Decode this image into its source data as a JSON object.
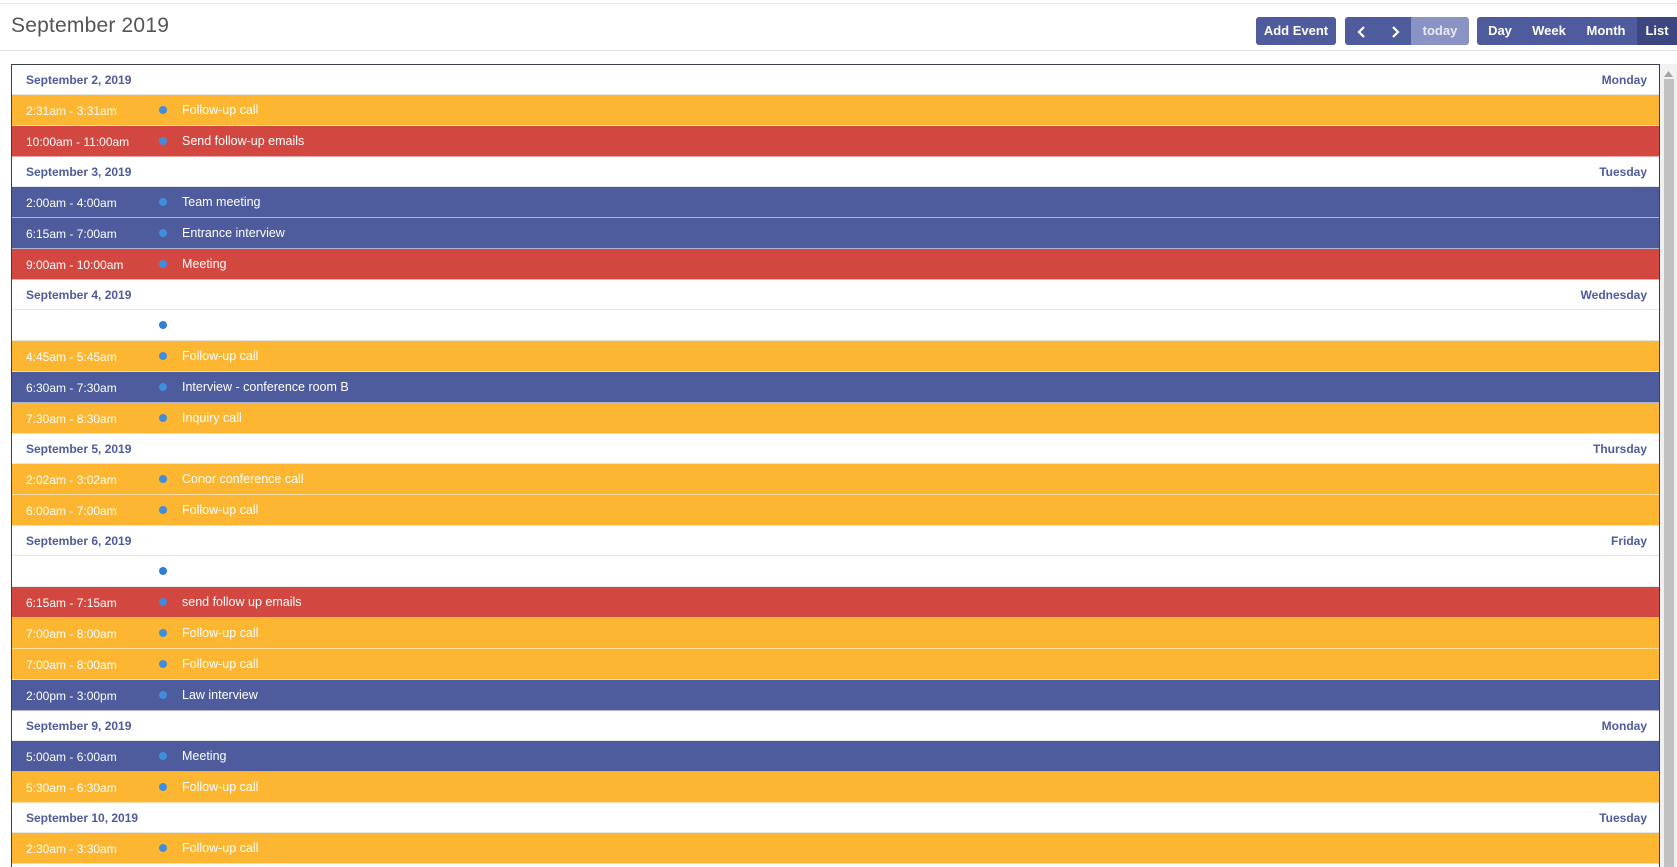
{
  "header": {
    "title": "September 2019",
    "add_event_label": "Add Event",
    "prev_icon": "chevron-left-icon",
    "next_icon": "chevron-right-icon",
    "today_label": "today",
    "views": {
      "day": "Day",
      "week": "Week",
      "month": "Month",
      "list": "List"
    },
    "active_view": "List"
  },
  "colors": {
    "accent": "#4e5b9c",
    "orange": "#fdb631",
    "red": "#d24841",
    "blue": "#4e5b9c",
    "dot": "#3f8ede"
  },
  "days": [
    {
      "date": "September 2, 2019",
      "weekday": "Monday",
      "events": [
        {
          "time": "2:31am - 3:31am",
          "title": "Follow-up call",
          "color": "orange"
        },
        {
          "time": "10:00am - 11:00am",
          "title": "Send follow-up emails",
          "color": "red"
        }
      ]
    },
    {
      "date": "September 3, 2019",
      "weekday": "Tuesday",
      "events": [
        {
          "time": "2:00am - 4:00am",
          "title": "Team meeting",
          "color": "blue"
        },
        {
          "time": "6:15am - 7:00am",
          "title": "Entrance interview",
          "color": "blue"
        },
        {
          "time": "9:00am - 10:00am",
          "title": "Meeting",
          "color": "red"
        }
      ]
    },
    {
      "date": "September 4, 2019",
      "weekday": "Wednesday",
      "events": [
        {
          "time": "",
          "title": "",
          "color": "white"
        },
        {
          "time": "4:45am - 5:45am",
          "title": "Follow-up call",
          "color": "orange"
        },
        {
          "time": "6:30am - 7:30am",
          "title": "Interview - conference room B",
          "color": "blue"
        },
        {
          "time": "7:30am - 8:30am",
          "title": "Inquiry call",
          "color": "orange"
        }
      ]
    },
    {
      "date": "September 5, 2019",
      "weekday": "Thursday",
      "events": [
        {
          "time": "2:02am - 3:02am",
          "title": "Conor conference call",
          "color": "orange"
        },
        {
          "time": "6:00am - 7:00am",
          "title": "Follow-up call",
          "color": "orange"
        }
      ]
    },
    {
      "date": "September 6, 2019",
      "weekday": "Friday",
      "events": [
        {
          "time": "",
          "title": "",
          "color": "white"
        },
        {
          "time": "6:15am - 7:15am",
          "title": "send follow up emails",
          "color": "red"
        },
        {
          "time": "7:00am - 8:00am",
          "title": "Follow-up call",
          "color": "orange"
        },
        {
          "time": "7:00am - 8:00am",
          "title": "Follow-up call",
          "color": "orange"
        },
        {
          "time": "2:00pm - 3:00pm",
          "title": "Law interview",
          "color": "blue"
        }
      ]
    },
    {
      "date": "September 9, 2019",
      "weekday": "Monday",
      "events": [
        {
          "time": "5:00am - 6:00am",
          "title": "Meeting",
          "color": "blue"
        },
        {
          "time": "5:30am - 6:30am",
          "title": "Follow-up call",
          "color": "orange"
        }
      ]
    },
    {
      "date": "September 10, 2019",
      "weekday": "Tuesday",
      "events": [
        {
          "time": "2:30am - 3:30am",
          "title": "Follow-up call",
          "color": "orange"
        }
      ]
    }
  ]
}
